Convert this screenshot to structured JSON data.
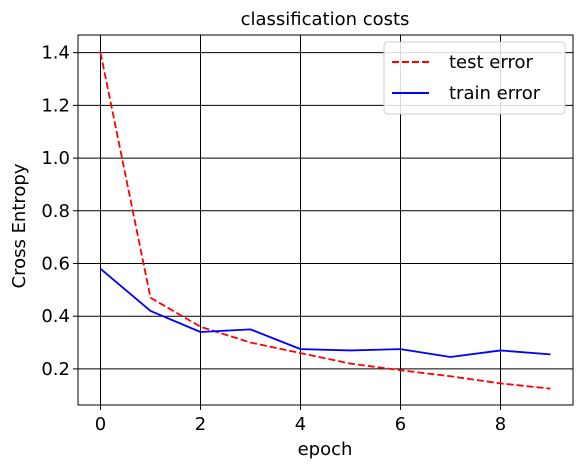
{
  "chart_data": {
    "type": "line",
    "title": "classification costs",
    "xlabel": "epoch",
    "ylabel": "Cross Entropy",
    "xlim": [
      -0.45,
      9.45
    ],
    "ylim": [
      0.063,
      1.467
    ],
    "grid": true,
    "legend_position": "top-right",
    "x": [
      0,
      1,
      2,
      3,
      4,
      5,
      6,
      7,
      8,
      9
    ],
    "xticks": [
      0,
      2,
      4,
      6,
      8
    ],
    "xtick_labels": [
      "0",
      "2",
      "4",
      "6",
      "8"
    ],
    "yticks": [
      0.2,
      0.4,
      0.6,
      0.8,
      1.0,
      1.2,
      1.4
    ],
    "ytick_labels": [
      "0.2",
      "0.4",
      "0.6",
      "0.8",
      "1.0",
      "1.2",
      "1.4"
    ],
    "series": [
      {
        "name": "test error",
        "color": "#ff0000",
        "style": "dashed",
        "values": [
          1.4,
          0.47,
          0.36,
          0.3,
          0.26,
          0.22,
          0.195,
          0.172,
          0.145,
          0.125
        ]
      },
      {
        "name": "train error",
        "color": "#0000ff",
        "style": "solid",
        "values": [
          0.58,
          0.42,
          0.34,
          0.35,
          0.275,
          0.27,
          0.275,
          0.245,
          0.27,
          0.255
        ]
      }
    ]
  }
}
